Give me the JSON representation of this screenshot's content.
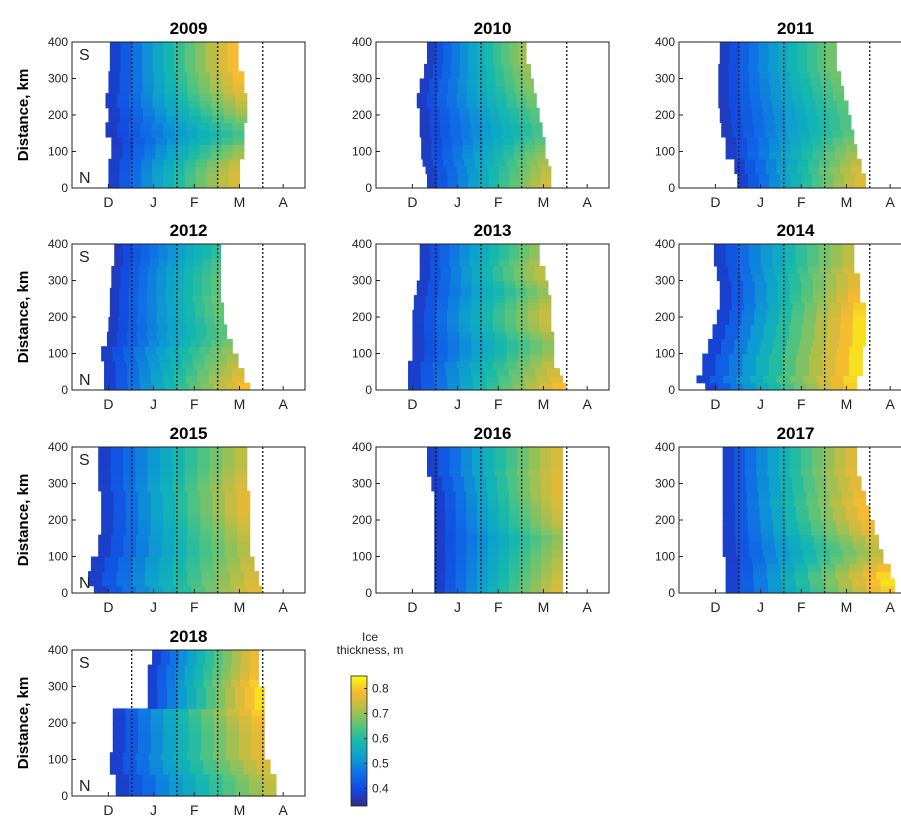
{
  "chart_data": {
    "type": "heatmap",
    "ylabel": "Distance, km",
    "ylim": [
      0,
      400
    ],
    "yticks": [
      0,
      100,
      200,
      300,
      400
    ],
    "month_ticks": [
      "D",
      "J",
      "F",
      "M",
      "A"
    ],
    "direction_labels": {
      "top": "S",
      "bottom": "N"
    },
    "colorbar": {
      "title_line1": "Ice",
      "title_line2": "thickness, m",
      "ticks": [
        0.4,
        0.5,
        0.6,
        0.7,
        0.8
      ],
      "range": [
        0.33,
        0.85
      ],
      "colormap": "parula"
    },
    "panels": [
      {
        "year": "2009",
        "start_doy": [
          15,
          15,
          15,
          15,
          17,
          17,
          17,
          13,
          13,
          15,
          15,
          13,
          13,
          15,
          15,
          15,
          16,
          16,
          16,
          16
        ],
        "end_doy": [
          105,
          105,
          105,
          105,
          108,
          108,
          108,
          108,
          108,
          110,
          110,
          110,
          110,
          108,
          108,
          108,
          104,
          104,
          104,
          104
        ],
        "max_thick": [
          0.77,
          0.77,
          0.76,
          0.74,
          0.72,
          0.7,
          0.66,
          0.64,
          0.66,
          0.69,
          0.72,
          0.74,
          0.76,
          0.78,
          0.79,
          0.8,
          0.8,
          0.8,
          0.8,
          0.8
        ]
      },
      {
        "year": "2010",
        "start_doy": [
          25,
          25,
          24,
          22,
          21,
          21,
          21,
          20,
          20,
          20,
          20,
          18,
          18,
          20,
          20,
          23,
          23,
          25,
          25,
          25
        ],
        "end_doy": [
          110,
          110,
          110,
          108,
          106,
          106,
          106,
          104,
          104,
          102,
          102,
          100,
          100,
          98,
          98,
          96,
          96,
          93,
          93,
          93
        ],
        "max_thick": [
          0.76,
          0.75,
          0.74,
          0.72,
          0.7,
          0.68,
          0.66,
          0.64,
          0.64,
          0.65,
          0.66,
          0.67,
          0.68,
          0.69,
          0.7,
          0.7,
          0.71,
          0.71,
          0.71,
          0.71
        ]
      },
      {
        "year": "2011",
        "start_doy": [
          30,
          30,
          28,
          28,
          22,
          22,
          22,
          19,
          19,
          18,
          18,
          17,
          17,
          17,
          17,
          17,
          17,
          18,
          18,
          18
        ],
        "end_doy": [
          118,
          118,
          115,
          115,
          112,
          112,
          110,
          110,
          108,
          108,
          106,
          106,
          103,
          103,
          101,
          101,
          98,
          98,
          98,
          98
        ],
        "max_thick": [
          0.78,
          0.77,
          0.76,
          0.74,
          0.72,
          0.7,
          0.68,
          0.66,
          0.65,
          0.65,
          0.65,
          0.66,
          0.66,
          0.67,
          0.67,
          0.68,
          0.68,
          0.68,
          0.68,
          0.68
        ]
      },
      {
        "year": "2012",
        "start_doy": [
          12,
          12,
          12,
          12,
          10,
          10,
          14,
          14,
          15,
          15,
          16,
          16,
          16,
          16,
          17,
          17,
          17,
          19,
          19,
          19
        ],
        "end_doy": [
          112,
          108,
          108,
          104,
          104,
          100,
          100,
          96,
          96,
          94,
          94,
          94,
          92,
          92,
          92,
          92,
          92,
          92,
          92,
          92
        ],
        "max_thick": [
          0.8,
          0.78,
          0.76,
          0.74,
          0.72,
          0.7,
          0.68,
          0.66,
          0.66,
          0.66,
          0.67,
          0.67,
          0.67,
          0.66,
          0.66,
          0.66,
          0.65,
          0.64,
          0.62,
          0.62
        ]
      },
      {
        "year": "2013",
        "start_doy": [
          12,
          12,
          12,
          12,
          15,
          15,
          15,
          15,
          15,
          15,
          15,
          16,
          16,
          18,
          18,
          20,
          20,
          20,
          20,
          20
        ],
        "end_doy": [
          120,
          118,
          116,
          112,
          112,
          112,
          112,
          112,
          110,
          110,
          110,
          110,
          110,
          108,
          108,
          106,
          106,
          102,
          102,
          102
        ],
        "max_thick": [
          0.8,
          0.78,
          0.76,
          0.74,
          0.72,
          0.7,
          0.7,
          0.72,
          0.74,
          0.75,
          0.75,
          0.74,
          0.72,
          0.7,
          0.72,
          0.74,
          0.74,
          0.72,
          0.7,
          0.7
        ]
      },
      {
        "year": "2014",
        "start_doy": [
          8,
          2,
          6,
          6,
          6,
          10,
          10,
          13,
          13,
          16,
          16,
          18,
          18,
          18,
          18,
          16,
          16,
          14,
          14,
          14
        ],
        "end_doy": [
          112,
          112,
          116,
          116,
          116,
          116,
          118,
          118,
          118,
          118,
          118,
          118,
          114,
          114,
          114,
          114,
          110,
          110,
          110,
          110
        ],
        "max_thick": [
          0.82,
          0.83,
          0.84,
          0.84,
          0.84,
          0.84,
          0.84,
          0.84,
          0.84,
          0.84,
          0.83,
          0.82,
          0.8,
          0.79,
          0.78,
          0.78,
          0.76,
          0.74,
          0.74,
          0.74
        ]
      },
      {
        "year": "2015",
        "start_doy": [
          5,
          1,
          1,
          3,
          3,
          8,
          8,
          8,
          10,
          10,
          10,
          10,
          10,
          10,
          8,
          8,
          8,
          8,
          8,
          8
        ],
        "end_doy": [
          120,
          118,
          118,
          115,
          115,
          112,
          112,
          112,
          112,
          112,
          112,
          112,
          112,
          112,
          110,
          110,
          110,
          110,
          110,
          110
        ],
        "max_thick": [
          0.78,
          0.77,
          0.76,
          0.75,
          0.74,
          0.73,
          0.73,
          0.74,
          0.75,
          0.76,
          0.77,
          0.78,
          0.78,
          0.78,
          0.77,
          0.76,
          0.75,
          0.74,
          0.74,
          0.74
        ]
      },
      {
        "year": "2016",
        "start_doy": [
          30,
          30,
          30,
          30,
          30,
          30,
          30,
          30,
          30,
          30,
          30,
          30,
          30,
          30,
          28,
          28,
          25,
          25,
          25,
          25
        ],
        "end_doy": [
          118,
          118,
          118,
          118,
          118,
          118,
          118,
          118,
          118,
          118,
          118,
          118,
          118,
          118,
          118,
          118,
          118,
          118,
          118,
          118
        ],
        "max_thick": [
          0.77,
          0.76,
          0.75,
          0.74,
          0.73,
          0.72,
          0.71,
          0.7,
          0.72,
          0.74,
          0.75,
          0.76,
          0.77,
          0.78,
          0.78,
          0.78,
          0.78,
          0.77,
          0.77,
          0.77
        ]
      },
      {
        "year": "2017",
        "start_doy": [
          22,
          22,
          22,
          22,
          22,
          20,
          20,
          20,
          20,
          20,
          20,
          20,
          20,
          20,
          20,
          20,
          20,
          20,
          20,
          20
        ],
        "end_doy": [
          138,
          138,
          135,
          135,
          130,
          130,
          127,
          127,
          124,
          124,
          121,
          121,
          118,
          118,
          115,
          115,
          112,
          112,
          112,
          112
        ],
        "max_thick": [
          0.82,
          0.84,
          0.83,
          0.8,
          0.76,
          0.74,
          0.74,
          0.76,
          0.78,
          0.79,
          0.8,
          0.8,
          0.8,
          0.79,
          0.78,
          0.78,
          0.78,
          0.77,
          0.77,
          0.77
        ]
      },
      {
        "year": "2018",
        "start_doy": [
          20,
          20,
          20,
          16,
          16,
          16,
          18,
          18,
          18,
          18,
          18,
          18,
          42,
          42,
          42,
          42,
          42,
          42,
          45,
          45
        ],
        "end_doy": [
          130,
          130,
          130,
          126,
          126,
          122,
          122,
          122,
          122,
          122,
          122,
          122,
          122,
          122,
          122,
          118,
          118,
          118,
          118,
          118
        ],
        "max_thick": [
          0.74,
          0.74,
          0.75,
          0.76,
          0.77,
          0.78,
          0.78,
          0.78,
          0.78,
          0.79,
          0.8,
          0.82,
          0.84,
          0.84,
          0.84,
          0.82,
          0.8,
          0.79,
          0.79,
          0.79
        ]
      }
    ]
  }
}
